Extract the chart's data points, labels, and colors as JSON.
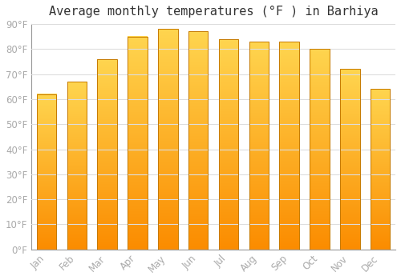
{
  "title": "Average monthly temperatures (°F ) in Barhiya",
  "months": [
    "Jan",
    "Feb",
    "Mar",
    "Apr",
    "May",
    "Jun",
    "Jul",
    "Aug",
    "Sep",
    "Oct",
    "Nov",
    "Dec"
  ],
  "values": [
    62,
    67,
    76,
    85,
    88,
    87,
    84,
    83,
    83,
    80,
    72,
    64
  ],
  "bar_color_main": "#FFA726",
  "bar_color_light": "#FFD54F",
  "bar_color_dark": "#FB8C00",
  "ylim": [
    0,
    90
  ],
  "yticks": [
    0,
    10,
    20,
    30,
    40,
    50,
    60,
    70,
    80,
    90
  ],
  "ytick_labels": [
    "0°F",
    "10°F",
    "20°F",
    "30°F",
    "40°F",
    "50°F",
    "60°F",
    "70°F",
    "80°F",
    "90°F"
  ],
  "background_color": "#ffffff",
  "grid_color": "#dddddd",
  "title_fontsize": 11,
  "tick_fontsize": 8.5,
  "tick_color": "#aaaaaa",
  "figsize": [
    5.0,
    3.5
  ],
  "dpi": 100
}
